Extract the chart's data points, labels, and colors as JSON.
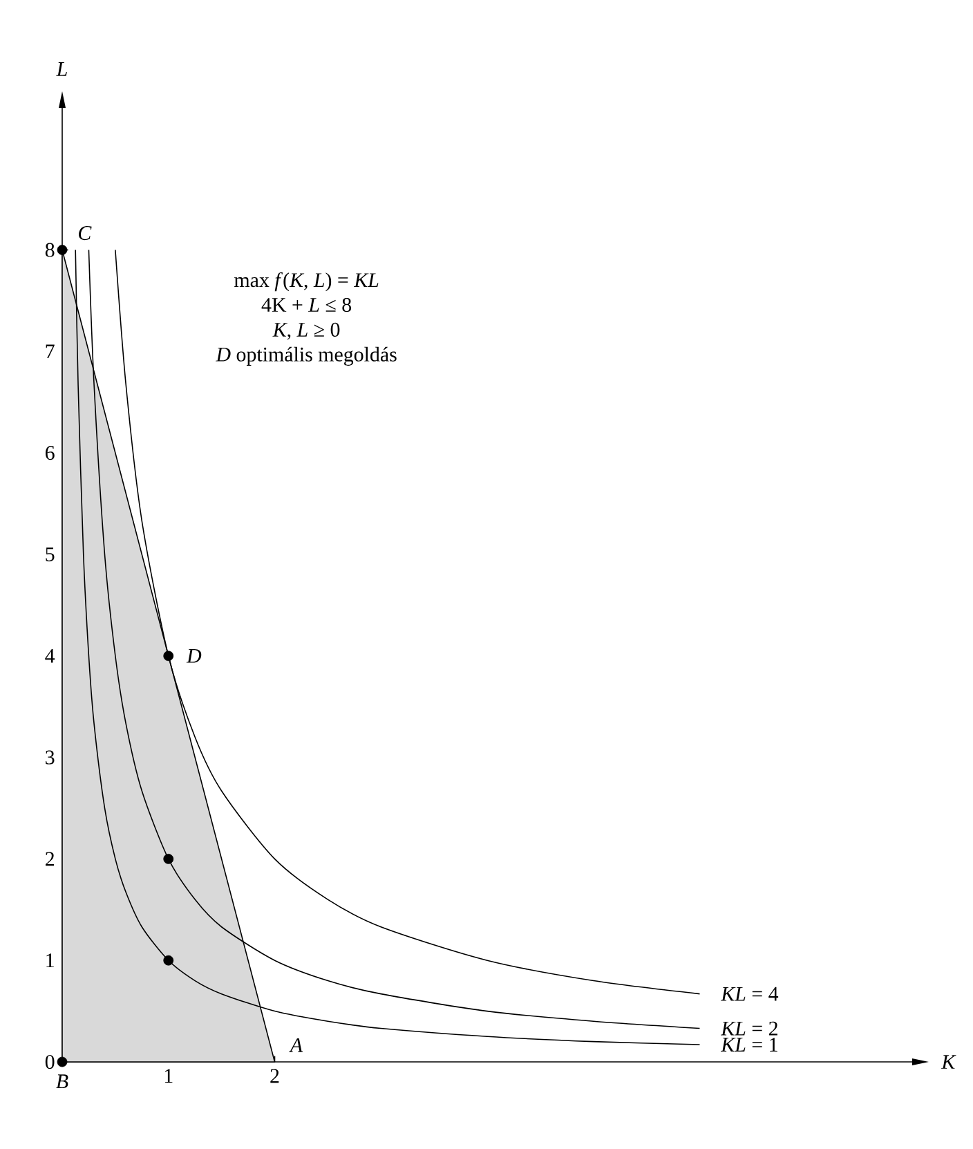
{
  "chart_data": {
    "type": "line",
    "xlabel": "K",
    "ylabel": "L",
    "xlim": [
      0,
      8
    ],
    "ylim": [
      0,
      9.4
    ],
    "xticks": [
      1,
      2
    ],
    "yticks": [
      0,
      1,
      2,
      3,
      4,
      5,
      6,
      7,
      8
    ],
    "series": [
      {
        "type": "area",
        "color": "#d9d9d9",
        "x": [
          0,
          2
        ],
        "values": [
          8,
          0
        ]
      },
      {
        "name": "*KL* = 1",
        "color": "#000000",
        "x": [
          0.125,
          0.15,
          0.2,
          0.25,
          0.3,
          0.4,
          0.5,
          0.6,
          0.75,
          1,
          1.25,
          1.5,
          2,
          2.5,
          3,
          4,
          5,
          6
        ],
        "values": [
          8,
          6.67,
          5,
          4,
          3.33,
          2.5,
          2,
          1.67,
          1.33,
          1,
          0.8,
          0.67,
          0.5,
          0.4,
          0.33,
          0.25,
          0.2,
          0.17
        ]
      },
      {
        "name": "*KL* = 2",
        "color": "#000000",
        "x": [
          0.25,
          0.3,
          0.4,
          0.5,
          0.6,
          0.75,
          1,
          1.25,
          1.5,
          2,
          2.5,
          3,
          4,
          5,
          6
        ],
        "values": [
          8,
          6.67,
          5,
          4,
          3.33,
          2.67,
          2,
          1.6,
          1.33,
          1,
          0.8,
          0.67,
          0.5,
          0.4,
          0.33
        ]
      },
      {
        "name": "*KL* = 4",
        "color": "#000000",
        "x": [
          0.5,
          0.6,
          0.75,
          1,
          1.25,
          1.5,
          2,
          2.5,
          3,
          4,
          5,
          6
        ],
        "values": [
          8,
          6.67,
          5.33,
          4,
          3.2,
          2.67,
          2,
          1.6,
          1.33,
          1,
          0.8,
          0.67
        ]
      },
      {
        "type": "scatter",
        "color": "#000000",
        "x": [
          0,
          0,
          1,
          1,
          1
        ],
        "values": [
          0,
          8,
          4,
          2,
          1
        ]
      }
    ],
    "annotations": [
      {
        "text": "*A*",
        "x": 2,
        "y": 0
      },
      {
        "text": "*B*",
        "x": 0,
        "y": 0
      },
      {
        "text": "*C*",
        "x": 0,
        "y": 8
      },
      {
        "text": "*D*",
        "x": 1,
        "y": 4
      },
      "max *f*(*K*, *L*) = *KL*",
      "4K + *L* ≤ 8",
      "*K*, *L* ≥ 0",
      "*D* optimális megoldás"
    ]
  }
}
